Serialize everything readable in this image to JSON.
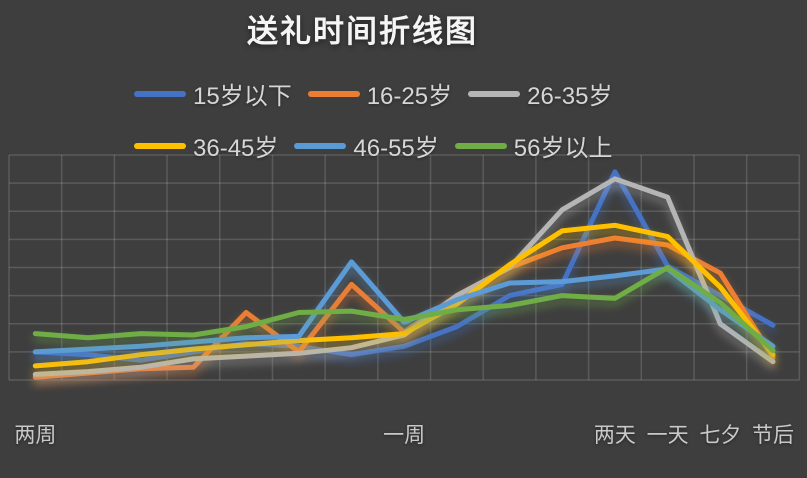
{
  "title": "送礼时间折线图",
  "chart_data": {
    "type": "line",
    "title": "送礼时间折线图",
    "categories": [
      "两周",
      "",
      "",
      "",
      "",
      "",
      "",
      "一周",
      "",
      "",
      "",
      "两天",
      "一天",
      "七夕",
      "节后"
    ],
    "series": [
      {
        "name": "15岁以下",
        "color": "#4472C4",
        "values": [
          1.0,
          0.9,
          0.7,
          1.0,
          1.3,
          1.2,
          0.9,
          1.2,
          1.9,
          3.0,
          3.4,
          7.4,
          4.05,
          3.0,
          1.95
        ]
      },
      {
        "name": "16-25岁",
        "color": "#ED7D31",
        "values": [
          0.1,
          0.25,
          0.4,
          0.45,
          2.4,
          1.0,
          3.4,
          1.7,
          3.0,
          4.0,
          4.7,
          5.05,
          4.8,
          3.8,
          0.8
        ]
      },
      {
        "name": "26-35岁",
        "color": "#B5B5B5",
        "values": [
          0.2,
          0.3,
          0.45,
          0.75,
          0.85,
          0.95,
          1.15,
          1.6,
          3.0,
          4.0,
          6.05,
          7.15,
          6.5,
          2.0,
          0.65
        ]
      },
      {
        "name": "36-45岁",
        "color": "#FFC000",
        "values": [
          0.5,
          0.65,
          0.9,
          1.1,
          1.25,
          1.4,
          1.5,
          1.65,
          2.7,
          4.1,
          5.3,
          5.5,
          5.1,
          3.3,
          0.9
        ]
      },
      {
        "name": "46-55岁",
        "color": "#5B9BD5",
        "values": [
          1.0,
          1.1,
          1.2,
          1.35,
          1.5,
          1.55,
          4.2,
          2.05,
          2.85,
          3.45,
          3.5,
          3.7,
          3.95,
          2.5,
          1.2
        ]
      },
      {
        "name": "56岁以上",
        "color": "#70AD47",
        "values": [
          1.65,
          1.5,
          1.65,
          1.6,
          1.9,
          2.4,
          2.45,
          2.15,
          2.5,
          2.65,
          3.0,
          2.9,
          4.0,
          2.75,
          1.05
        ]
      }
    ],
    "ylim": [
      0,
      8
    ],
    "y_ticks_labeled": false,
    "grid": true,
    "legend_position": "top"
  },
  "colors": {
    "background": "#3e3e3e",
    "gridline": "rgba(220,220,220,0.18)",
    "title_text": "#f5f5f5",
    "legend_text": "#d6d6d6",
    "axis_label_text": "#c9c9c9"
  }
}
